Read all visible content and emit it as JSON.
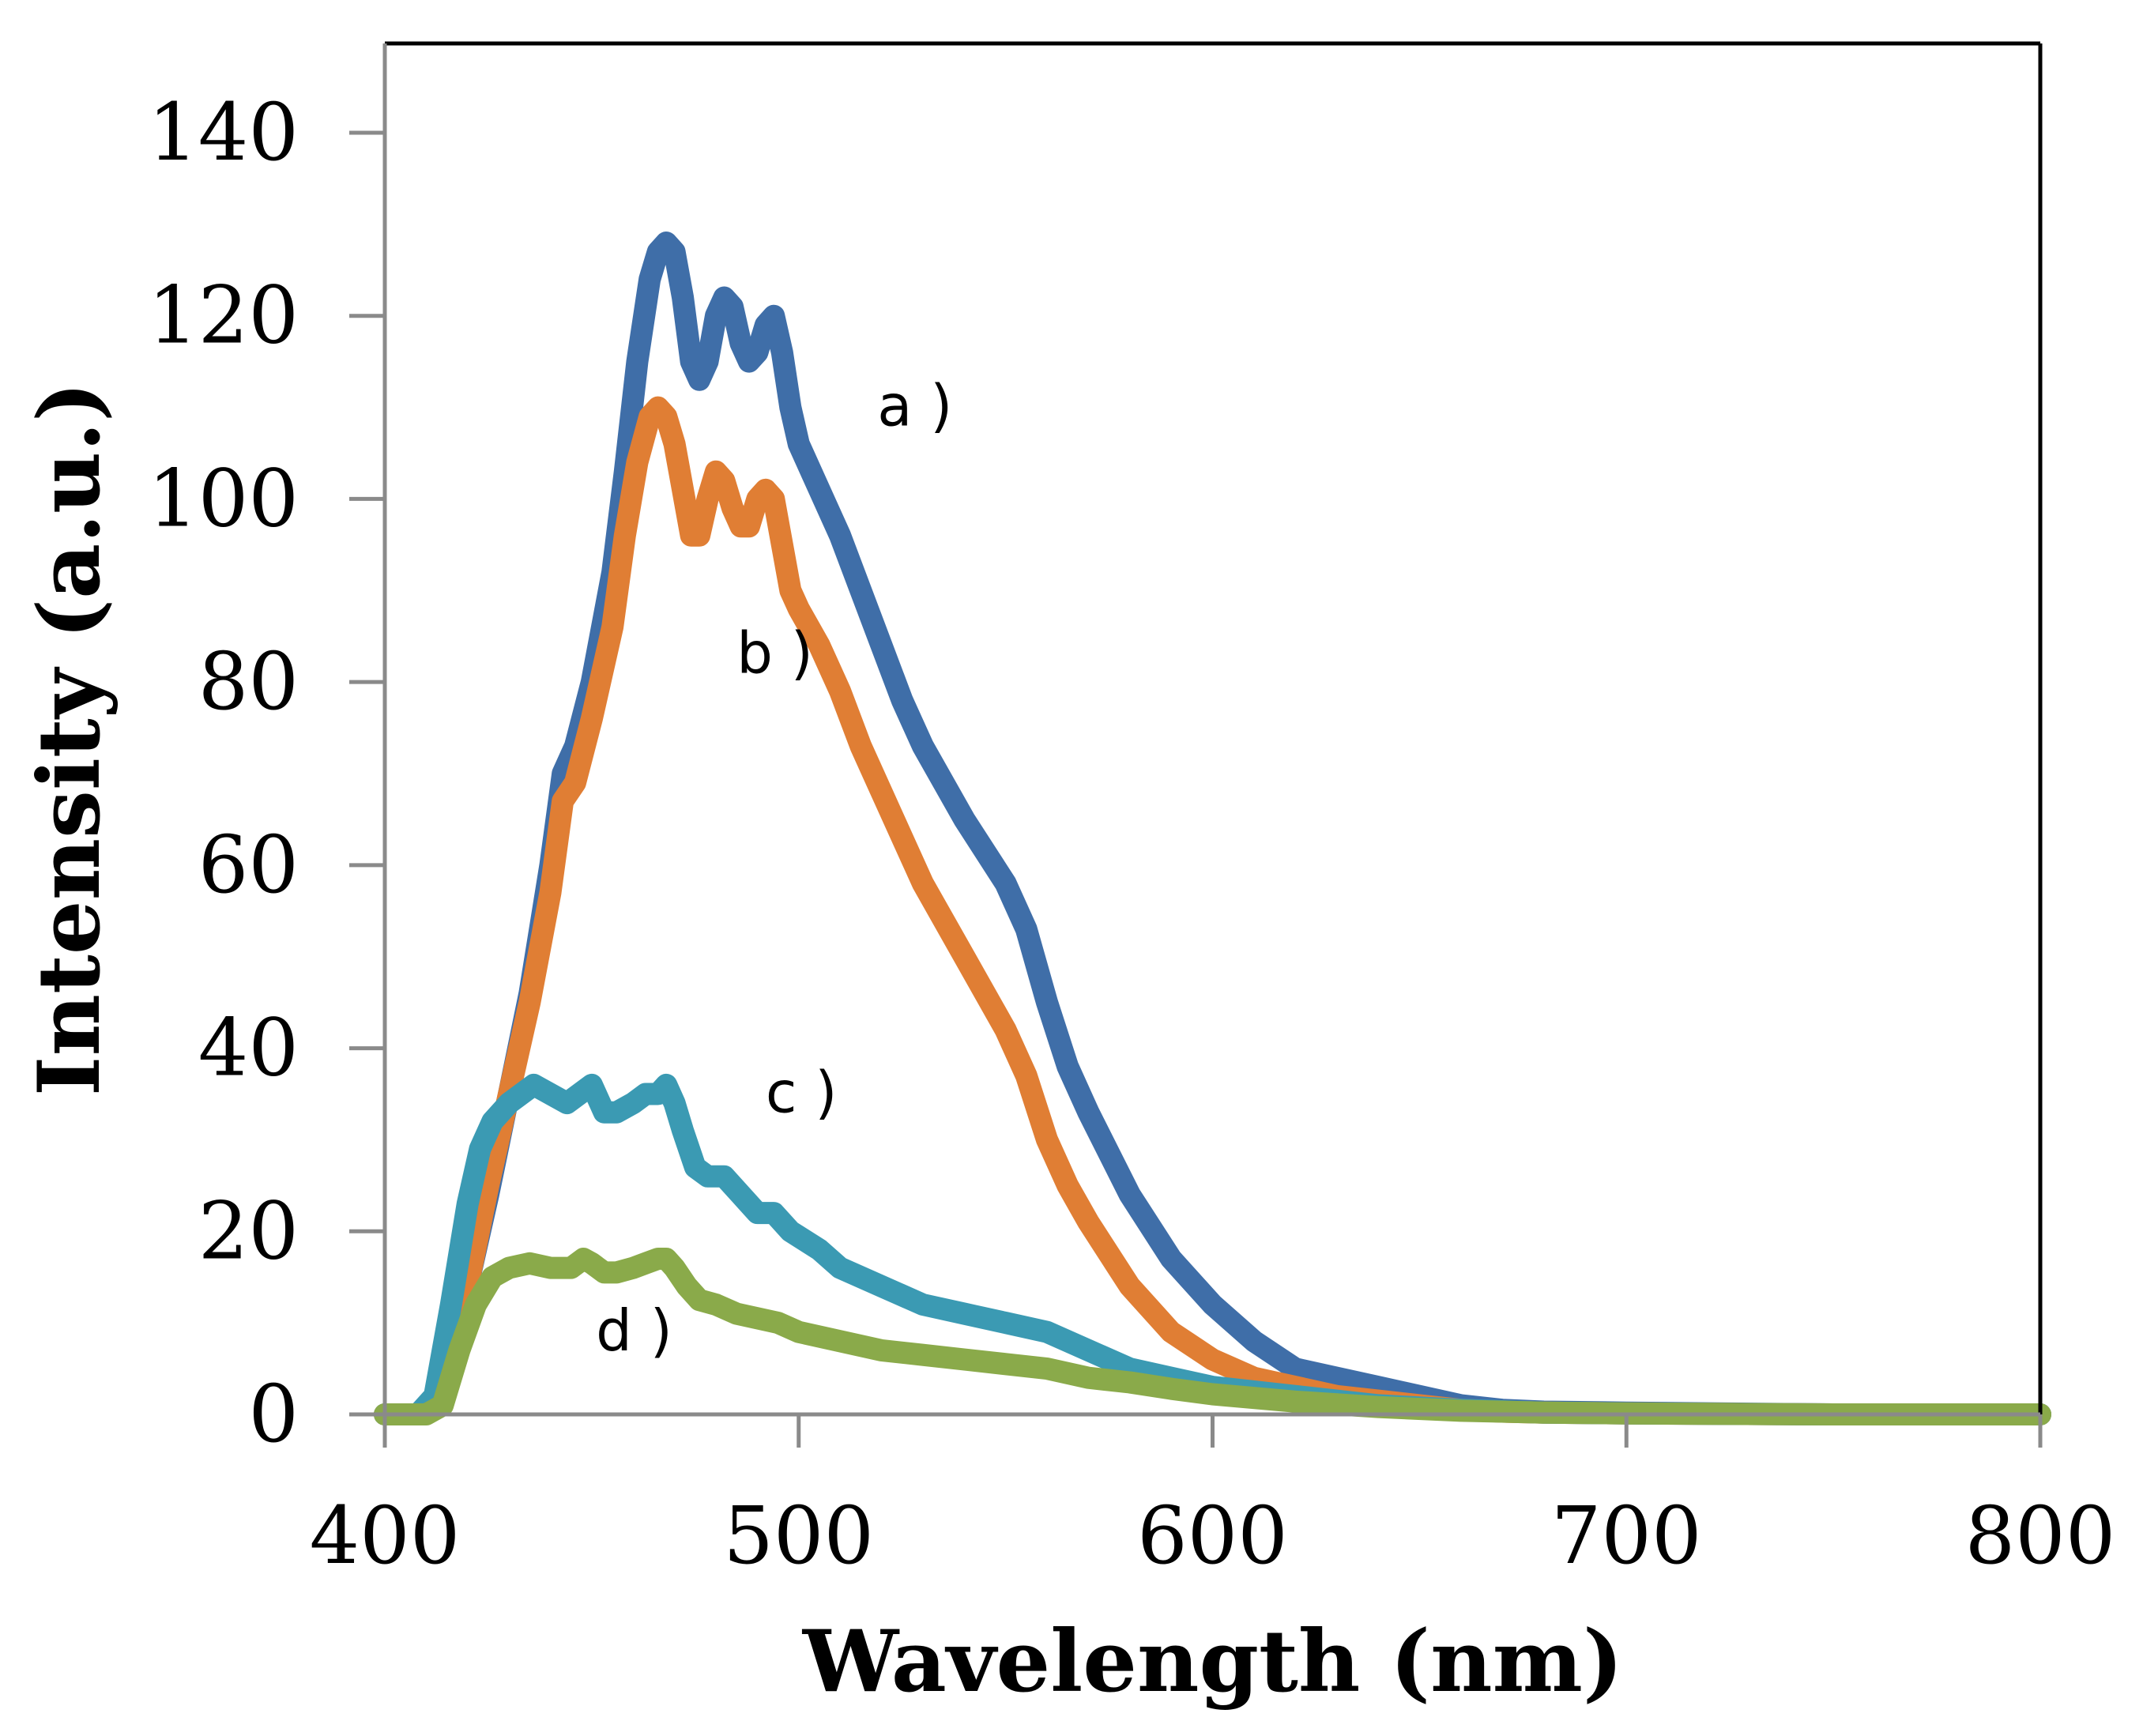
{
  "chart_data": {
    "type": "line",
    "title": "",
    "xlabel": "Wavelength (nm)",
    "ylabel": "Intensity (a.u.)",
    "xlim": [
      400,
      800
    ],
    "ylim": [
      0,
      150
    ],
    "xticks": [
      400,
      500,
      600,
      700,
      800
    ],
    "yticks": [
      0,
      20,
      40,
      60,
      80,
      100,
      120,
      140
    ],
    "xtick_labels": [
      "400",
      "500",
      "600",
      "700",
      "800"
    ],
    "ytick_labels": [
      "0",
      "20",
      "40",
      "60",
      "80",
      "100",
      "120",
      "140"
    ],
    "grid": false,
    "legend": "none",
    "series": [
      {
        "name": "a )",
        "label": "a )",
        "color": "#3f6ea8",
        "label_pos": [
          519,
          108
        ],
        "x": [
          400,
          408,
          412,
          416,
          420,
          425,
          430,
          435,
          440,
          443,
          446,
          450,
          455,
          458,
          461,
          464,
          466,
          468,
          470,
          472,
          474,
          476,
          478,
          480,
          482,
          484,
          486,
          488,
          490,
          492,
          494,
          496,
          498,
          500,
          505,
          510,
          515,
          520,
          525,
          530,
          540,
          550,
          555,
          560,
          565,
          570,
          580,
          590,
          600,
          610,
          620,
          630,
          640,
          650,
          660,
          670,
          680,
          700,
          750,
          800
        ],
        "y": [
          0,
          0,
          1,
          6,
          14,
          24,
          35,
          46,
          60,
          70,
          73,
          80,
          92,
          103,
          115,
          124,
          127,
          128,
          127,
          122,
          115,
          113,
          115,
          120,
          122,
          121,
          117,
          115,
          116,
          119,
          120,
          116,
          110,
          106,
          101,
          96,
          90,
          84,
          78,
          73,
          65,
          58,
          53,
          45,
          38,
          33,
          24,
          17,
          12,
          8,
          5,
          4,
          3,
          2,
          1,
          0.5,
          0.3,
          0.2,
          0,
          0
        ]
      },
      {
        "name": "b )",
        "label": "b )",
        "color": "#e07e34",
        "label_pos": [
          485,
          81
        ],
        "x": [
          400,
          408,
          412,
          416,
          420,
          425,
          430,
          435,
          440,
          443,
          446,
          450,
          455,
          458,
          461,
          464,
          466,
          468,
          470,
          472,
          474,
          476,
          478,
          480,
          482,
          484,
          486,
          488,
          490,
          492,
          494,
          496,
          498,
          500,
          505,
          510,
          515,
          520,
          525,
          530,
          540,
          550,
          555,
          560,
          565,
          570,
          580,
          590,
          600,
          610,
          620,
          630,
          640,
          650,
          660,
          670,
          680,
          700,
          750,
          800
        ],
        "y": [
          0,
          0,
          1,
          6,
          14,
          25,
          35,
          45,
          57,
          67,
          69,
          76,
          86,
          96,
          104,
          109,
          110,
          109,
          106,
          101,
          96,
          96,
          100,
          103,
          102,
          99,
          97,
          97,
          100,
          101,
          100,
          95,
          90,
          88,
          84,
          79,
          73,
          68,
          63,
          58,
          50,
          42,
          37,
          30,
          25,
          21,
          14,
          9,
          6,
          4,
          3,
          2,
          1.5,
          1,
          0.5,
          0.3,
          0.2,
          0.1,
          0,
          0
        ]
      },
      {
        "name": "c )",
        "label": "c )",
        "color": "#3b9ab3",
        "label_pos": [
          492,
          33
        ],
        "x": [
          400,
          408,
          412,
          416,
          420,
          423,
          426,
          430,
          433,
          436,
          440,
          444,
          447,
          450,
          453,
          456,
          460,
          463,
          466,
          468,
          470,
          472,
          475,
          478,
          482,
          486,
          490,
          494,
          498,
          505,
          510,
          520,
          530,
          540,
          550,
          560,
          570,
          580,
          590,
          600,
          620,
          640,
          660,
          680,
          700,
          750,
          800
        ],
        "y": [
          0,
          0,
          2,
          12,
          23,
          29,
          32,
          34,
          35,
          36,
          35,
          34,
          35,
          36,
          33,
          33,
          34,
          35,
          35,
          36,
          34,
          31,
          27,
          26,
          26,
          24,
          22,
          22,
          20,
          18,
          16,
          14,
          12,
          11,
          10,
          9,
          7,
          5,
          4,
          3,
          2,
          1,
          0.5,
          0.2,
          0.1,
          0,
          0
        ]
      },
      {
        "name": "d )",
        "label": "d )",
        "color": "#8aaa4a",
        "label_pos": [
          451,
          7
        ],
        "x": [
          400,
          410,
          414,
          418,
          422,
          426,
          430,
          435,
          440,
          445,
          448,
          450,
          453,
          456,
          460,
          463,
          466,
          468,
          470,
          473,
          476,
          480,
          485,
          490,
          495,
          500,
          510,
          520,
          530,
          540,
          550,
          560,
          570,
          580,
          590,
          600,
          620,
          640,
          660,
          680,
          700,
          750,
          800
        ],
        "y": [
          0,
          0,
          1,
          7,
          12,
          15,
          16,
          16.5,
          16,
          16,
          17,
          16.5,
          15.5,
          15.5,
          16,
          16.5,
          17,
          17,
          16,
          14,
          12.5,
          12,
          11,
          10.5,
          10,
          9,
          8,
          7,
          6.5,
          6,
          5.5,
          5,
          4,
          3.5,
          2.8,
          2.2,
          1.4,
          0.8,
          0.4,
          0.2,
          0.1,
          0,
          0
        ]
      }
    ]
  }
}
